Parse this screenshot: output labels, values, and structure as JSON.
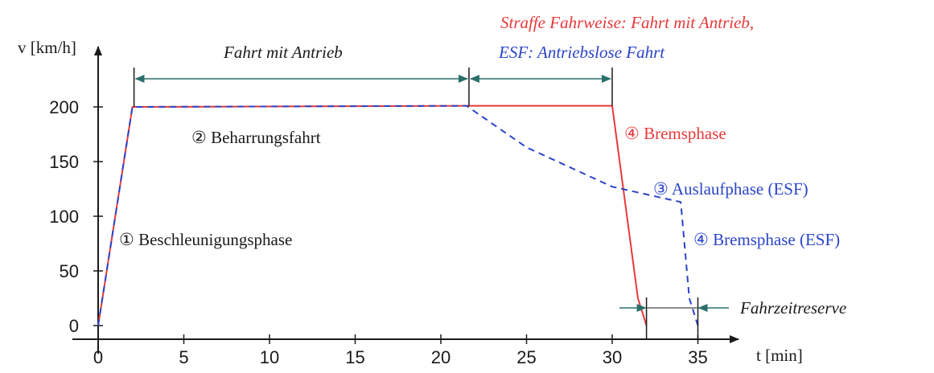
{
  "colors": {
    "red": "#e8393a",
    "blue": "#2a44c8",
    "black": "#1a1a1a"
  },
  "chart_data": {
    "type": "line",
    "xlabel": "t [min]",
    "ylabel": "v [km/h]",
    "xlim": [
      0,
      37
    ],
    "ylim": [
      0,
      230
    ],
    "x_ticks": [
      0,
      5,
      10,
      15,
      20,
      25,
      30,
      35
    ],
    "y_ticks": [
      0,
      50,
      100,
      150,
      200
    ],
    "grid": false,
    "legend": "top-right",
    "legend_entries": [
      {
        "text": "Straffe Fahrweise: Fahrt mit Antrieb,",
        "color": "#e8393a"
      },
      {
        "text": "ESF: Antriebslose Fahrt",
        "color": "#2a44c8"
      }
    ],
    "series": [
      {
        "name": "Straffe Fahrweise",
        "color": "#e8393a",
        "style": "solid",
        "x": [
          0,
          2,
          21.5,
          30,
          31.5,
          32
        ],
        "y": [
          0,
          200,
          201,
          201,
          25,
          0
        ]
      },
      {
        "name": "ESF",
        "color": "#2a44c8",
        "style": "dashed",
        "x": [
          0,
          2,
          21.5,
          25,
          30,
          34,
          34.5,
          35
        ],
        "y": [
          0,
          200,
          201,
          163,
          127,
          113,
          25,
          0
        ]
      }
    ],
    "annotations": [
      {
        "id": "fahrt",
        "text": "Fahrt mit Antrieb",
        "color": "#1a1a1a"
      },
      {
        "id": "phase1",
        "text": "① Beschleunigungsphase",
        "color": "#1a1a1a"
      },
      {
        "id": "phase2",
        "text": "② Beharrungsfahrt",
        "color": "#1a1a1a"
      },
      {
        "id": "phase3",
        "text": "③ Auslaufphase (ESF)",
        "color": "#2a44c8"
      },
      {
        "id": "phase4red",
        "text": "④ Bremsphase",
        "color": "#e8393a"
      },
      {
        "id": "phase4blue",
        "text": "④ Bremsphase (ESF)",
        "color": "#2a44c8"
      },
      {
        "id": "reserve",
        "text": "Fahrzeitreserve",
        "color": "#1a1a1a"
      }
    ]
  }
}
